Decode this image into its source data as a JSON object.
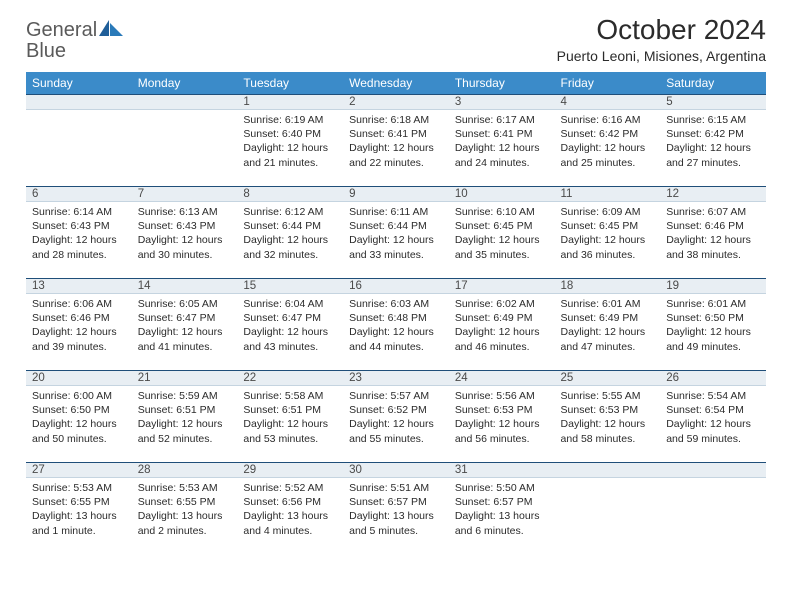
{
  "brand": {
    "part1": "General",
    "part2": "Blue"
  },
  "title": "October 2024",
  "location": "Puerto Leoni, Misiones, Argentina",
  "colors": {
    "header_bg": "#3b8bc9",
    "header_fg": "#ffffff",
    "daybar_bg": "#e8eef3",
    "daybar_border_top": "#1f4e79",
    "brand_gray": "#5a5a5a",
    "brand_blue": "#2a7ab9",
    "text": "#2b2b2b"
  },
  "weekdays": [
    "Sunday",
    "Monday",
    "Tuesday",
    "Wednesday",
    "Thursday",
    "Friday",
    "Saturday"
  ],
  "weeks": [
    [
      null,
      null,
      {
        "n": "1",
        "sr": "6:19 AM",
        "ss": "6:40 PM",
        "dl": "12 hours and 21 minutes."
      },
      {
        "n": "2",
        "sr": "6:18 AM",
        "ss": "6:41 PM",
        "dl": "12 hours and 22 minutes."
      },
      {
        "n": "3",
        "sr": "6:17 AM",
        "ss": "6:41 PM",
        "dl": "12 hours and 24 minutes."
      },
      {
        "n": "4",
        "sr": "6:16 AM",
        "ss": "6:42 PM",
        "dl": "12 hours and 25 minutes."
      },
      {
        "n": "5",
        "sr": "6:15 AM",
        "ss": "6:42 PM",
        "dl": "12 hours and 27 minutes."
      }
    ],
    [
      {
        "n": "6",
        "sr": "6:14 AM",
        "ss": "6:43 PM",
        "dl": "12 hours and 28 minutes."
      },
      {
        "n": "7",
        "sr": "6:13 AM",
        "ss": "6:43 PM",
        "dl": "12 hours and 30 minutes."
      },
      {
        "n": "8",
        "sr": "6:12 AM",
        "ss": "6:44 PM",
        "dl": "12 hours and 32 minutes."
      },
      {
        "n": "9",
        "sr": "6:11 AM",
        "ss": "6:44 PM",
        "dl": "12 hours and 33 minutes."
      },
      {
        "n": "10",
        "sr": "6:10 AM",
        "ss": "6:45 PM",
        "dl": "12 hours and 35 minutes."
      },
      {
        "n": "11",
        "sr": "6:09 AM",
        "ss": "6:45 PM",
        "dl": "12 hours and 36 minutes."
      },
      {
        "n": "12",
        "sr": "6:07 AM",
        "ss": "6:46 PM",
        "dl": "12 hours and 38 minutes."
      }
    ],
    [
      {
        "n": "13",
        "sr": "6:06 AM",
        "ss": "6:46 PM",
        "dl": "12 hours and 39 minutes."
      },
      {
        "n": "14",
        "sr": "6:05 AM",
        "ss": "6:47 PM",
        "dl": "12 hours and 41 minutes."
      },
      {
        "n": "15",
        "sr": "6:04 AM",
        "ss": "6:47 PM",
        "dl": "12 hours and 43 minutes."
      },
      {
        "n": "16",
        "sr": "6:03 AM",
        "ss": "6:48 PM",
        "dl": "12 hours and 44 minutes."
      },
      {
        "n": "17",
        "sr": "6:02 AM",
        "ss": "6:49 PM",
        "dl": "12 hours and 46 minutes."
      },
      {
        "n": "18",
        "sr": "6:01 AM",
        "ss": "6:49 PM",
        "dl": "12 hours and 47 minutes."
      },
      {
        "n": "19",
        "sr": "6:01 AM",
        "ss": "6:50 PM",
        "dl": "12 hours and 49 minutes."
      }
    ],
    [
      {
        "n": "20",
        "sr": "6:00 AM",
        "ss": "6:50 PM",
        "dl": "12 hours and 50 minutes."
      },
      {
        "n": "21",
        "sr": "5:59 AM",
        "ss": "6:51 PM",
        "dl": "12 hours and 52 minutes."
      },
      {
        "n": "22",
        "sr": "5:58 AM",
        "ss": "6:51 PM",
        "dl": "12 hours and 53 minutes."
      },
      {
        "n": "23",
        "sr": "5:57 AM",
        "ss": "6:52 PM",
        "dl": "12 hours and 55 minutes."
      },
      {
        "n": "24",
        "sr": "5:56 AM",
        "ss": "6:53 PM",
        "dl": "12 hours and 56 minutes."
      },
      {
        "n": "25",
        "sr": "5:55 AM",
        "ss": "6:53 PM",
        "dl": "12 hours and 58 minutes."
      },
      {
        "n": "26",
        "sr": "5:54 AM",
        "ss": "6:54 PM",
        "dl": "12 hours and 59 minutes."
      }
    ],
    [
      {
        "n": "27",
        "sr": "5:53 AM",
        "ss": "6:55 PM",
        "dl": "13 hours and 1 minute."
      },
      {
        "n": "28",
        "sr": "5:53 AM",
        "ss": "6:55 PM",
        "dl": "13 hours and 2 minutes."
      },
      {
        "n": "29",
        "sr": "5:52 AM",
        "ss": "6:56 PM",
        "dl": "13 hours and 4 minutes."
      },
      {
        "n": "30",
        "sr": "5:51 AM",
        "ss": "6:57 PM",
        "dl": "13 hours and 5 minutes."
      },
      {
        "n": "31",
        "sr": "5:50 AM",
        "ss": "6:57 PM",
        "dl": "13 hours and 6 minutes."
      },
      null,
      null
    ]
  ],
  "labels": {
    "sunrise": "Sunrise:",
    "sunset": "Sunset:",
    "daylight": "Daylight:"
  }
}
